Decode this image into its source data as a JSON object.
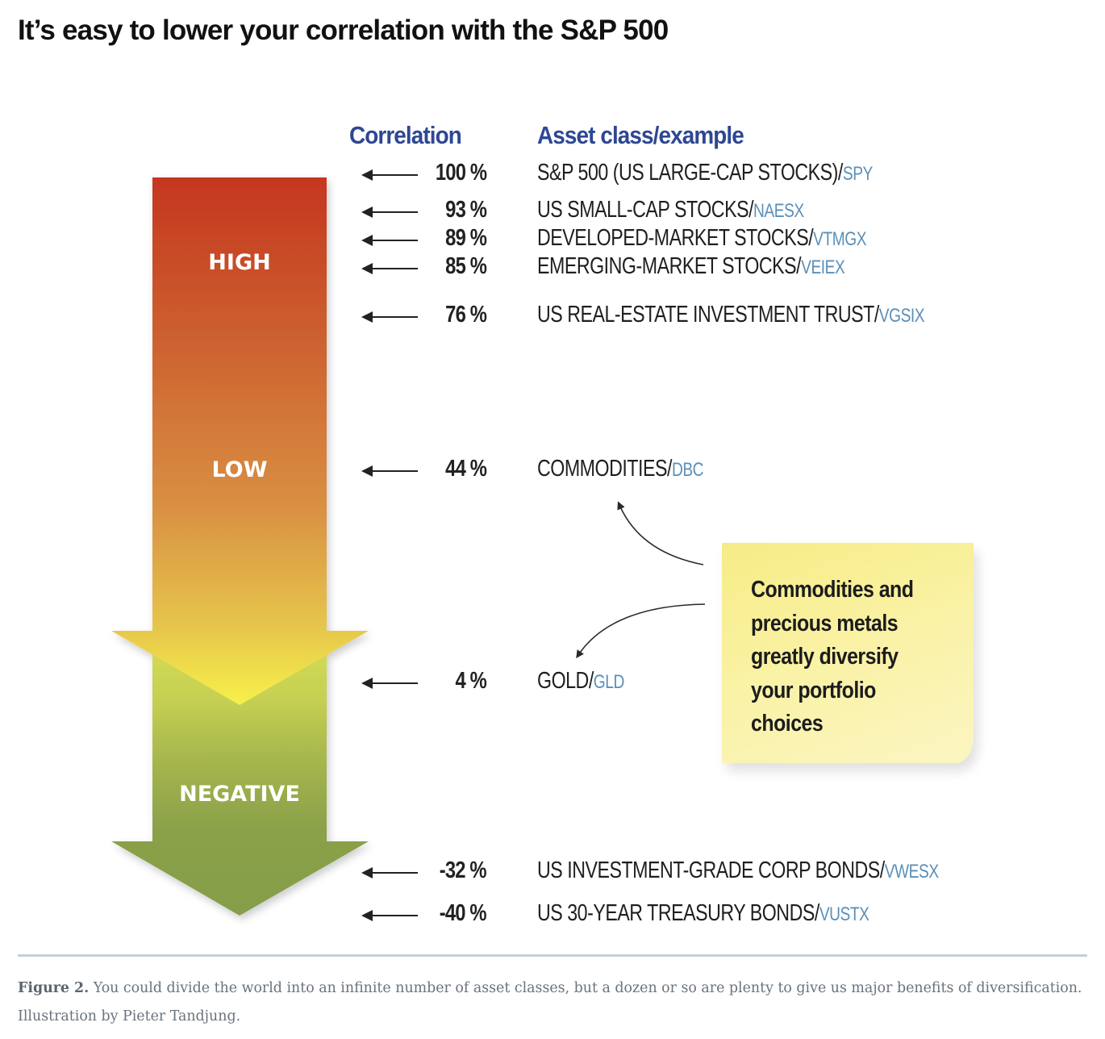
{
  "title": "It’s easy to lower your correlation with the S&P 500",
  "columns": {
    "correlation": "Correlation",
    "asset": "Asset class/example"
  },
  "bands": {
    "high": "HIGH",
    "low": "LOW",
    "negative": "NEGATIVE"
  },
  "colors": {
    "header_blue": "#2e4793",
    "ticker_blue": "#5b8fb8",
    "arrow_top_red": "#c5361f",
    "arrow_orange": "#d7873d",
    "arrow_yellow": "#f5ee4a",
    "arrow_green": "#859d4a",
    "note_yellow": "#f8ef98"
  },
  "rows": [
    {
      "pct": "100 %",
      "asset": "S&P 500 (US LARGE-CAP STOCKS)/",
      "ticker": "SPY"
    },
    {
      "pct": "93 %",
      "asset": "US SMALL-CAP STOCKS/",
      "ticker": "NAESX"
    },
    {
      "pct": "89 %",
      "asset": "DEVELOPED-MARKET STOCKS/",
      "ticker": "VTMGX"
    },
    {
      "pct": "85 %",
      "asset": "EMERGING-MARKET STOCKS/",
      "ticker": "VEIEX"
    },
    {
      "pct": "76 %",
      "asset": "US REAL-ESTATE INVESTMENT TRUST/",
      "ticker": "VGSIX"
    },
    {
      "pct": "44 %",
      "asset": "COMMODITIES/",
      "ticker": "DBC"
    },
    {
      "pct": "4 %",
      "asset": "GOLD/",
      "ticker": "GLD"
    },
    {
      "pct": "-32 %",
      "asset": "US INVESTMENT-GRADE CORP BONDS/",
      "ticker": "VWESX"
    },
    {
      "pct": "-40 %",
      "asset": "US 30-YEAR TREASURY BONDS/",
      "ticker": "VUSTX"
    }
  ],
  "note": {
    "lines": [
      "Commodities and",
      "precious metals",
      "greatly diversify",
      "your portfolio",
      "choices"
    ]
  },
  "caption": {
    "label": "Figure 2.",
    "text": " You could divide the world into an infinite number of asset classes, but a dozen or so are plenty to give us major benefits of diversification. Illustration by Pieter Tandjung."
  }
}
